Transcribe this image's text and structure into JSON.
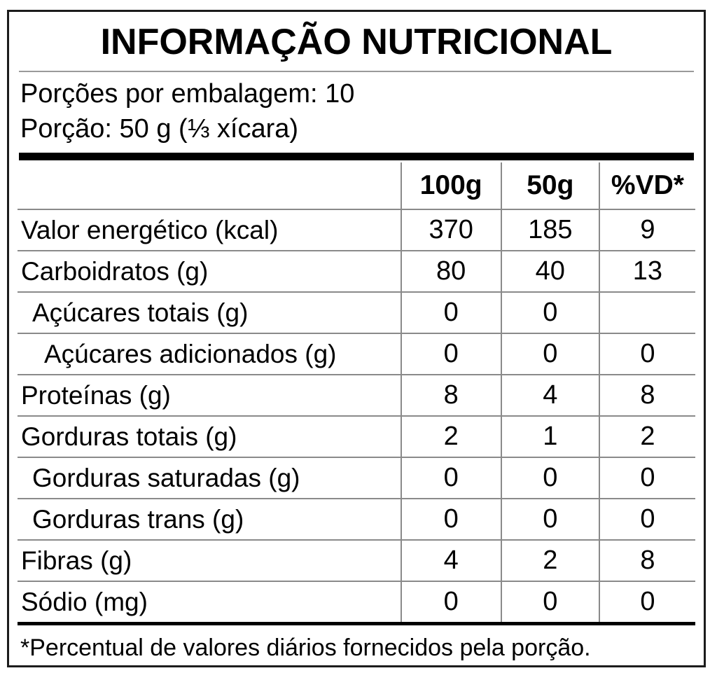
{
  "label": {
    "title": "INFORMAÇÃO NUTRICIONAL",
    "servings_line": "Porções por embalagem: 10",
    "portion_line": "Porção: 50 g (⅓ xícara)",
    "columns": [
      "100g",
      "50g",
      "%VD*"
    ],
    "rows": [
      {
        "name": "Valor energético (kcal)",
        "per100g": "370",
        "per50g": "185",
        "vd": "9",
        "indent": 0
      },
      {
        "name": "Carboidratos (g)",
        "per100g": "80",
        "per50g": "40",
        "vd": "13",
        "indent": 0
      },
      {
        "name": "Açúcares totais (g)",
        "per100g": "0",
        "per50g": "0",
        "vd": "",
        "indent": 1
      },
      {
        "name": "Açúcares adicionados (g)",
        "per100g": "0",
        "per50g": "0",
        "vd": "0",
        "indent": 2
      },
      {
        "name": "Proteínas (g)",
        "per100g": "8",
        "per50g": "4",
        "vd": "8",
        "indent": 0
      },
      {
        "name": "Gorduras totais (g)",
        "per100g": "2",
        "per50g": "1",
        "vd": "2",
        "indent": 0
      },
      {
        "name": "Gorduras saturadas (g)",
        "per100g": "0",
        "per50g": "0",
        "vd": "0",
        "indent": 1
      },
      {
        "name": "Gorduras trans (g)",
        "per100g": "0",
        "per50g": "0",
        "vd": "0",
        "indent": 1
      },
      {
        "name": "Fibras (g)",
        "per100g": "4",
        "per50g": "2",
        "vd": "8",
        "indent": 0
      },
      {
        "name": "Sódio (mg)",
        "per100g": "0",
        "per50g": "0",
        "vd": "0",
        "indent": 0
      }
    ],
    "footnote": "*Percentual de valores diários fornecidos pela porção.",
    "colors": {
      "text": "#000000",
      "rule_gray": "#8a8a8a",
      "bar_black": "#000000",
      "background": "#ffffff"
    }
  }
}
